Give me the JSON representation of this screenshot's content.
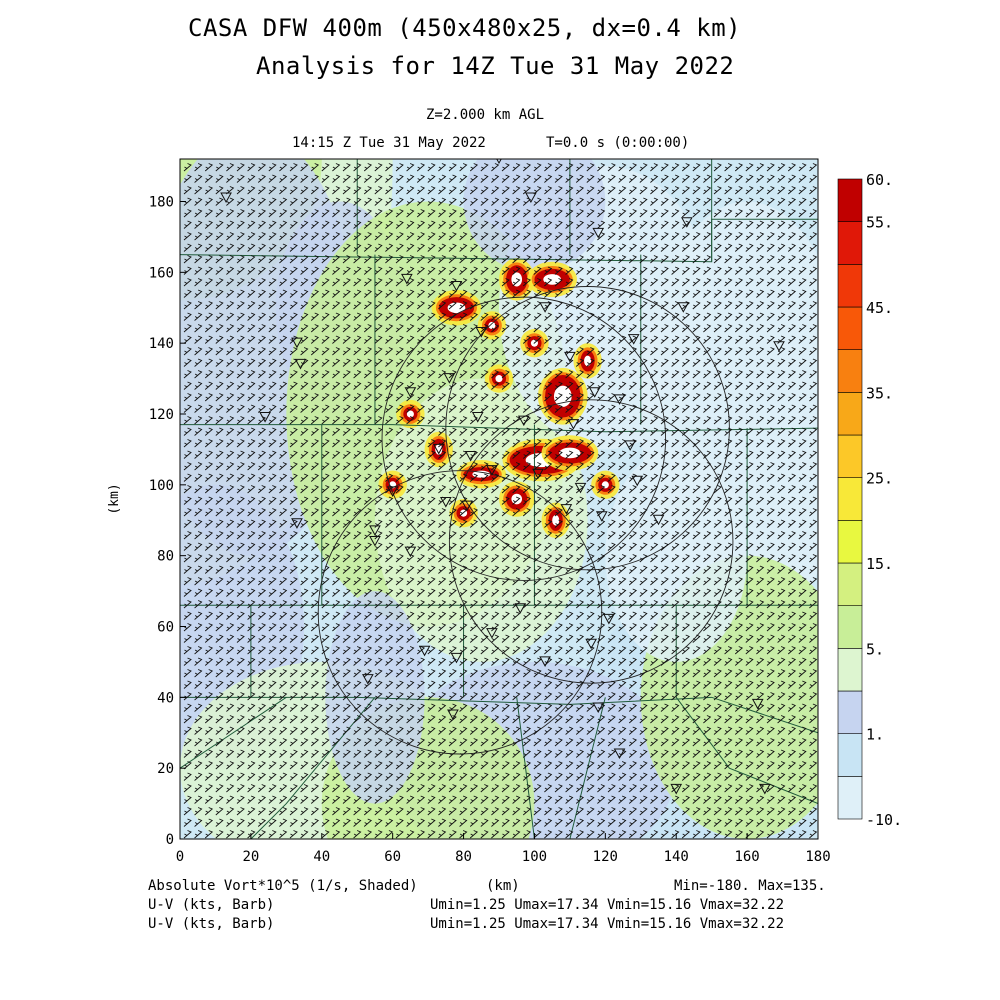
{
  "header": {
    "title_line1": "CASA DFW 400m (450x480x25, dx=0.4 km)",
    "title_line2": "Analysis for 14Z Tue 31 May 2022",
    "level": "Z=2.000 km AGL",
    "valid_time": "14:15 Z Tue 31 May 2022",
    "elapsed": "T=0.0 s (0:00:00)"
  },
  "footer": {
    "field_label": "Absolute Vort*10^5 (1/s, Shaded)",
    "xunit": "(km)",
    "minmax": "Min=-180. Max=135.",
    "barb_label_1": "U-V (kts, Barb)",
    "barb_label_2": "U-V (kts, Barb)",
    "barb_stats_1": "Umin=1.25 Umax=17.34 Vmin=15.16 Vmax=32.22",
    "barb_stats_2": "Umin=1.25 Umax=17.34 Vmin=15.16 Vmax=32.22"
  },
  "chart_data": {
    "type": "heatmap",
    "xlabel": "",
    "ylabel": "(km)",
    "xlim": [
      0,
      180
    ],
    "ylim": [
      0,
      192
    ],
    "x_ticks": [
      0,
      20,
      40,
      60,
      80,
      100,
      120,
      140,
      160,
      180
    ],
    "y_ticks": [
      0,
      20,
      40,
      60,
      80,
      100,
      120,
      140,
      160,
      180
    ],
    "colorbar": {
      "labels": [
        "60.",
        "55.",
        "45.",
        "35.",
        "25.",
        "15.",
        "5.",
        "1.",
        "-10."
      ],
      "levels": [
        -10,
        -5,
        1,
        3,
        5,
        10,
        15,
        20,
        25,
        30,
        35,
        40,
        45,
        50,
        55,
        60
      ],
      "colors": [
        "#dff0f8",
        "#c8e4f4",
        "#c6d4f0",
        "#ddf5d0",
        "#c8ee98",
        "#d4f080",
        "#e8f840",
        "#f8e838",
        "#fcc828",
        "#f8a818",
        "#f88010",
        "#f85808",
        "#f03808",
        "#e01808",
        "#c00000"
      ]
    },
    "radar_rings": [
      {
        "cx": 97,
        "cy": 113,
        "r": 40
      },
      {
        "cx": 115,
        "cy": 116,
        "r": 40
      },
      {
        "cx": 79,
        "cy": 64,
        "r": 40
      },
      {
        "cx": 116,
        "cy": 84,
        "r": 40
      }
    ],
    "wind_barbs": {
      "u_range": [
        1.25,
        17.34
      ],
      "v_range": [
        15.16,
        32.22
      ],
      "units": "kts"
    }
  }
}
